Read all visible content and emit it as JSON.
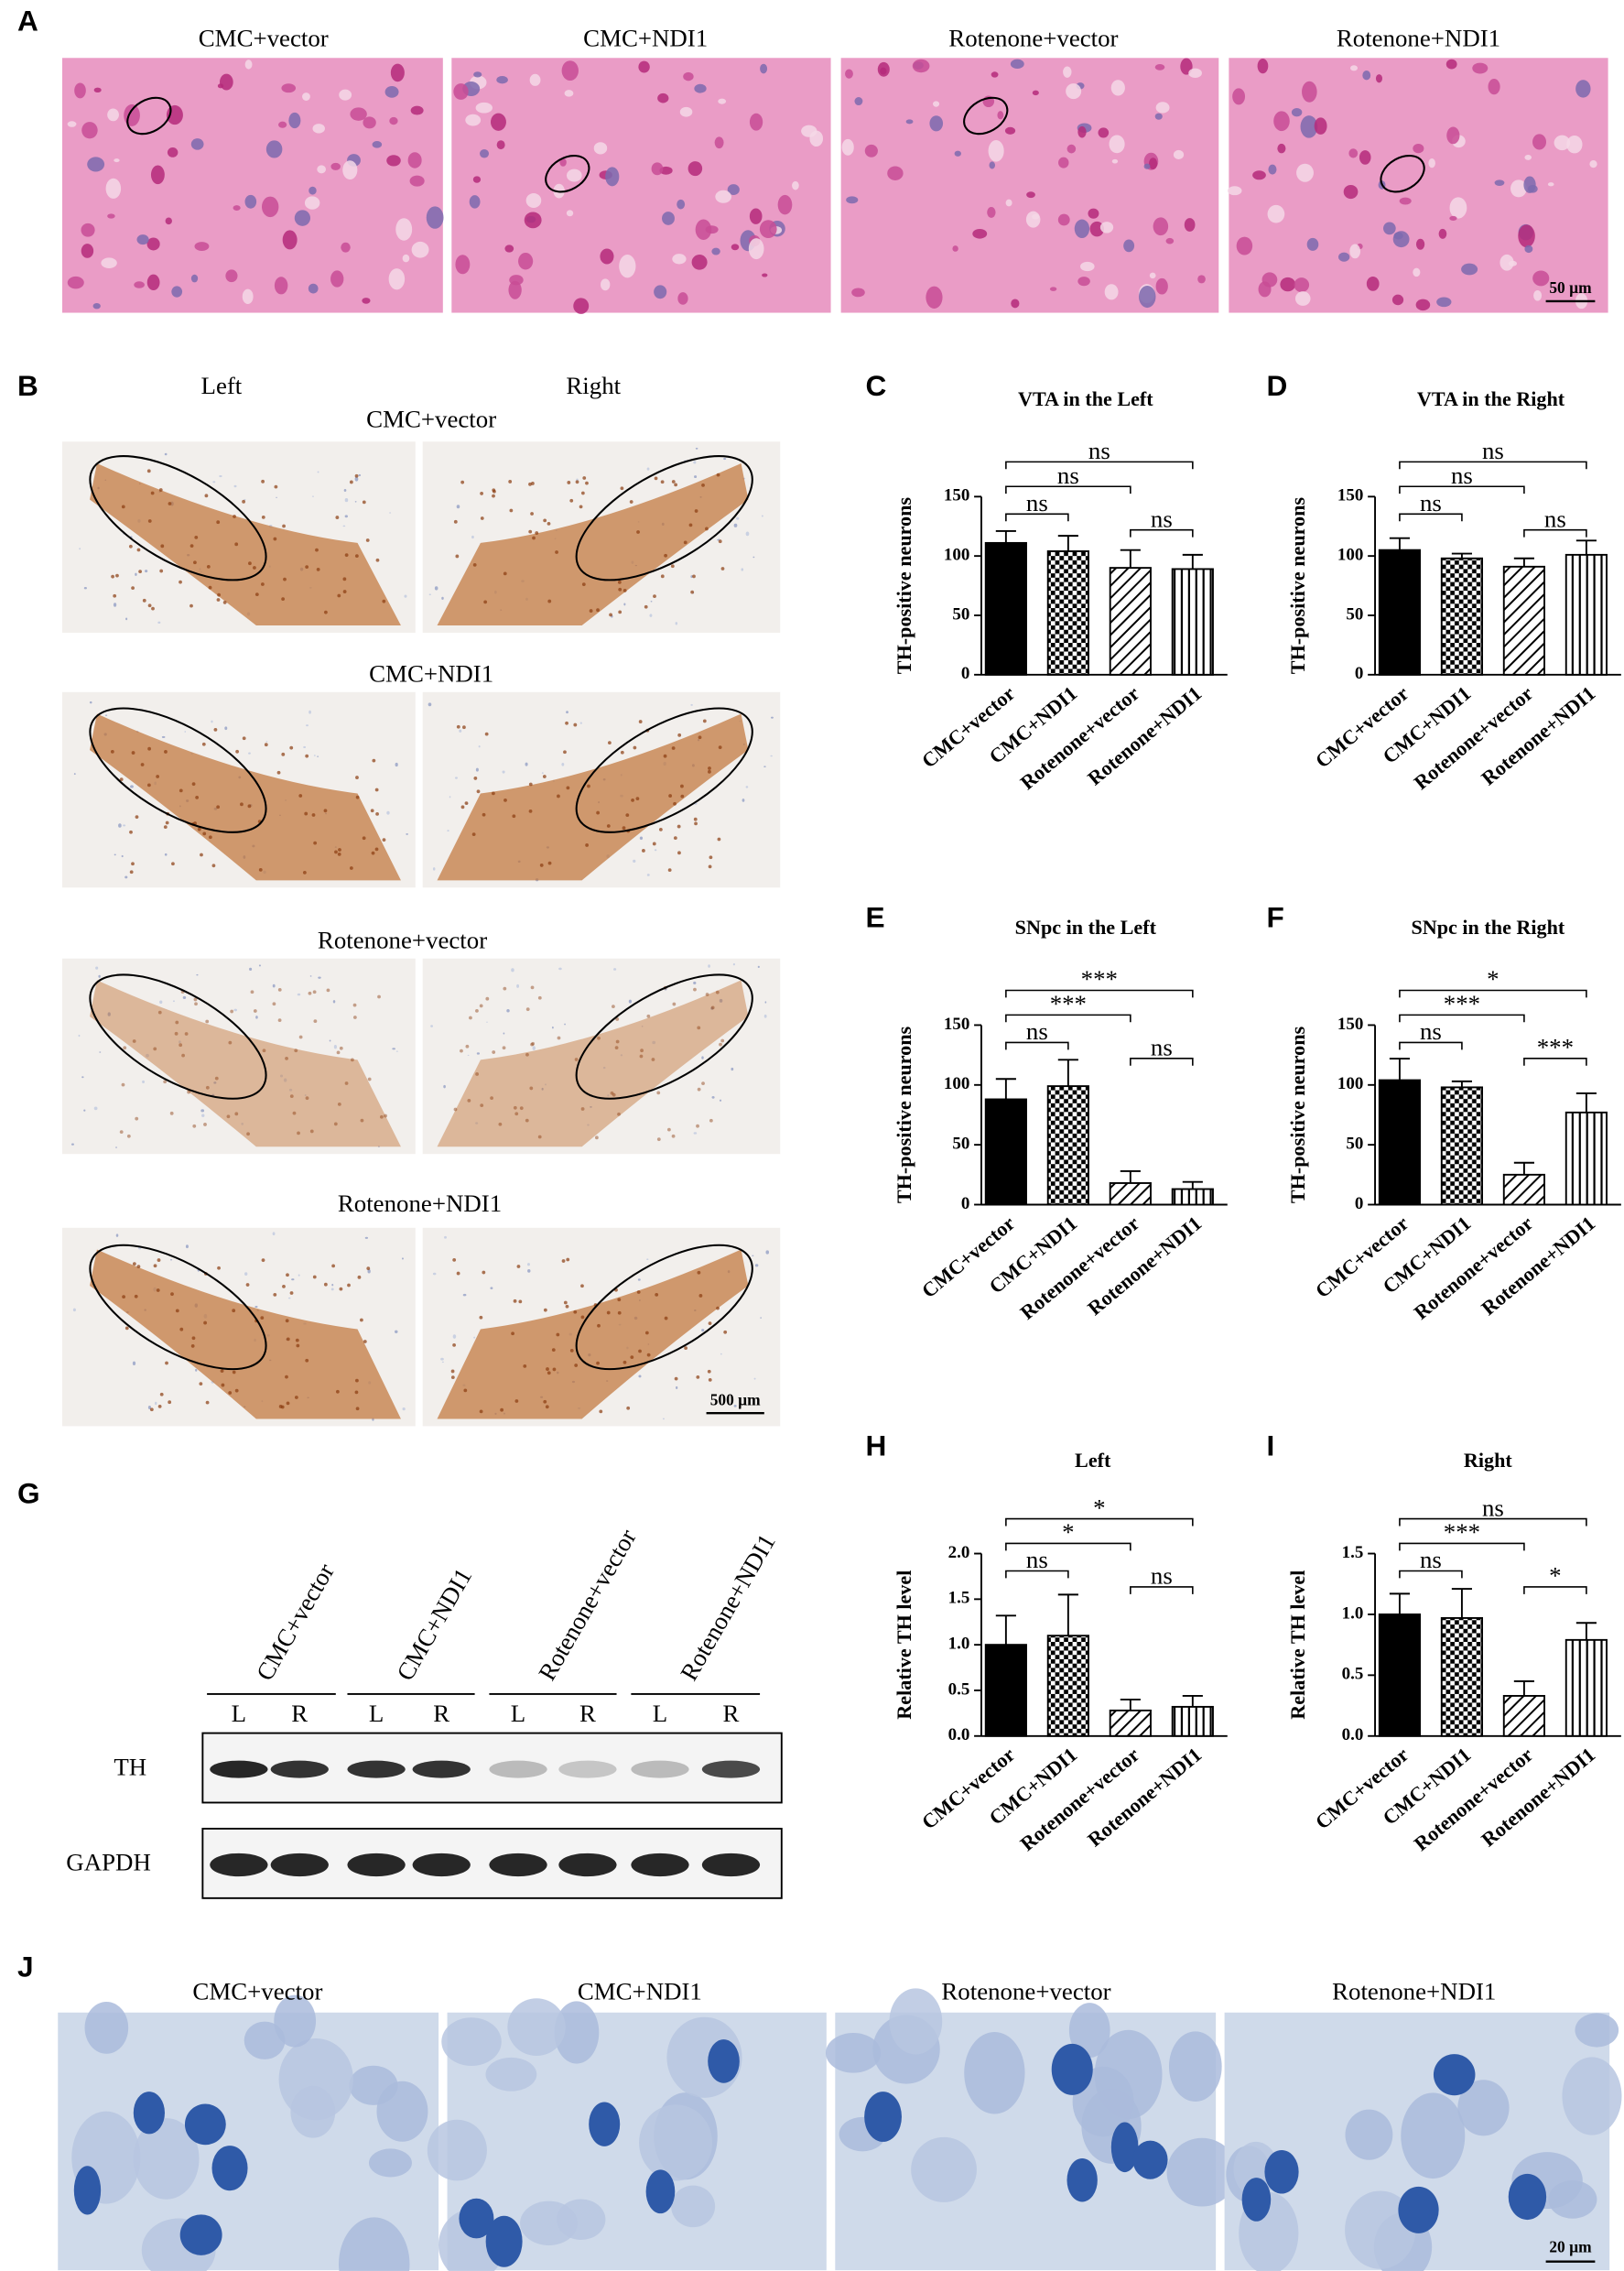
{
  "panel_a": {
    "letter": "A",
    "labels": [
      "CMC+vector",
      "CMC+NDI1",
      "Rotenone+vector",
      "Rotenone+NDI1"
    ],
    "scale_bar": "50 µm"
  },
  "panel_b": {
    "letter": "B",
    "sides": [
      "Left",
      "Right"
    ],
    "groups": [
      "CMC+vector",
      "CMC+NDI1",
      "Rotenone+vector",
      "Rotenone+NDI1"
    ],
    "scale_bar": "500 µm"
  },
  "panel_g": {
    "letter": "G",
    "lanes": [
      "CMC+vector",
      "CMC+NDI1",
      "Rotenone+vector",
      "Rotenone+NDI1"
    ],
    "sides": [
      "L",
      "R"
    ],
    "rows": [
      "TH",
      "GAPDH"
    ]
  },
  "panel_j": {
    "letter": "J",
    "labels": [
      "CMC+vector",
      "CMC+NDI1",
      "Rotenone+vector",
      "Rotenone+NDI1"
    ],
    "scale_bar": "20 µm"
  },
  "chart_data": [
    {
      "panel": "C",
      "type": "bar",
      "title": "VTA in the Left",
      "y_label": "TH-positive neurons",
      "categories": [
        "CMC+vector",
        "CMC+NDI1",
        "Rotenone+vector",
        "Rotenone+NDI1"
      ],
      "values": [
        111,
        104,
        90,
        89
      ],
      "errors": [
        10,
        13,
        15,
        12
      ],
      "fills": [
        "solid",
        "checker",
        "hatch",
        "vertical"
      ],
      "ylim": [
        0,
        150
      ],
      "yticks": [
        0,
        50,
        100,
        150
      ],
      "comparisons": [
        {
          "from": "CMC+vector",
          "to": "CMC+NDI1",
          "label": "ns"
        },
        {
          "from": "CMC+vector",
          "to": "Rotenone+vector",
          "label": "ns"
        },
        {
          "from": "CMC+vector",
          "to": "Rotenone+NDI1",
          "label": "ns"
        },
        {
          "from": "Rotenone+vector",
          "to": "Rotenone+NDI1",
          "label": "ns"
        }
      ]
    },
    {
      "panel": "D",
      "type": "bar",
      "title": "VTA in the Right",
      "y_label": "TH-positive neurons",
      "categories": [
        "CMC+vector",
        "CMC+NDI1",
        "Rotenone+vector",
        "Rotenone+NDI1"
      ],
      "values": [
        105,
        98,
        91,
        101
      ],
      "errors": [
        10,
        4,
        7,
        12
      ],
      "fills": [
        "solid",
        "checker",
        "hatch",
        "vertical"
      ],
      "ylim": [
        0,
        150
      ],
      "yticks": [
        0,
        50,
        100,
        150
      ],
      "comparisons": [
        {
          "from": "CMC+vector",
          "to": "CMC+NDI1",
          "label": "ns"
        },
        {
          "from": "CMC+vector",
          "to": "Rotenone+vector",
          "label": "ns"
        },
        {
          "from": "CMC+vector",
          "to": "Rotenone+NDI1",
          "label": "ns"
        },
        {
          "from": "Rotenone+vector",
          "to": "Rotenone+NDI1",
          "label": "ns"
        }
      ]
    },
    {
      "panel": "E",
      "type": "bar",
      "title": "SNpc in the Left",
      "y_label": "TH-positive neurons",
      "categories": [
        "CMC+vector",
        "CMC+NDI1",
        "Rotenone+vector",
        "Rotenone+NDI1"
      ],
      "values": [
        88,
        99,
        18,
        13
      ],
      "errors": [
        17,
        22,
        10,
        6
      ],
      "fills": [
        "solid",
        "checker",
        "hatch",
        "vertical"
      ],
      "ylim": [
        0,
        150
      ],
      "yticks": [
        0,
        50,
        100,
        150
      ],
      "comparisons": [
        {
          "from": "CMC+vector",
          "to": "CMC+NDI1",
          "label": "ns"
        },
        {
          "from": "CMC+vector",
          "to": "Rotenone+vector",
          "label": "***"
        },
        {
          "from": "CMC+vector",
          "to": "Rotenone+NDI1",
          "label": "***"
        },
        {
          "from": "Rotenone+vector",
          "to": "Rotenone+NDI1",
          "label": "ns"
        }
      ]
    },
    {
      "panel": "F",
      "type": "bar",
      "title": "SNpc in the Right",
      "y_label": "TH-positive neurons",
      "categories": [
        "CMC+vector",
        "CMC+NDI1",
        "Rotenone+vector",
        "Rotenone+NDI1"
      ],
      "values": [
        104,
        98,
        25,
        77
      ],
      "errors": [
        18,
        5,
        10,
        16
      ],
      "fills": [
        "solid",
        "checker",
        "hatch",
        "vertical"
      ],
      "ylim": [
        0,
        150
      ],
      "yticks": [
        0,
        50,
        100,
        150
      ],
      "comparisons": [
        {
          "from": "CMC+vector",
          "to": "CMC+NDI1",
          "label": "ns"
        },
        {
          "from": "CMC+vector",
          "to": "Rotenone+vector",
          "label": "***"
        },
        {
          "from": "CMC+vector",
          "to": "Rotenone+NDI1",
          "label": "*"
        },
        {
          "from": "Rotenone+vector",
          "to": "Rotenone+NDI1",
          "label": "***"
        }
      ]
    },
    {
      "panel": "H",
      "type": "bar",
      "title": "Left",
      "y_label": "Relative TH level",
      "categories": [
        "CMC+vector",
        "CMC+NDI1",
        "Rotenone+vector",
        "Rotenone+NDI1"
      ],
      "values": [
        1.0,
        1.1,
        0.28,
        0.32
      ],
      "errors": [
        0.32,
        0.45,
        0.12,
        0.12
      ],
      "fills": [
        "solid",
        "checker",
        "hatch",
        "vertical"
      ],
      "ylim": [
        0,
        2
      ],
      "yticks": [
        {
          "value": 0,
          "label": "0.0"
        },
        {
          "value": 0.5,
          "label": "0.5"
        },
        {
          "value": 1,
          "label": "1.0"
        },
        {
          "value": 1.5,
          "label": "1.5"
        },
        {
          "value": 2,
          "label": "2.0"
        }
      ],
      "comparisons": [
        {
          "from": "CMC+vector",
          "to": "CMC+NDI1",
          "label": "ns"
        },
        {
          "from": "CMC+vector",
          "to": "Rotenone+vector",
          "label": "*"
        },
        {
          "from": "CMC+vector",
          "to": "Rotenone+NDI1",
          "label": "*"
        },
        {
          "from": "Rotenone+vector",
          "to": "Rotenone+NDI1",
          "label": "ns"
        }
      ]
    },
    {
      "panel": "I",
      "type": "bar",
      "title": "Right",
      "y_label": "Relative TH level",
      "categories": [
        "CMC+vector",
        "CMC+NDI1",
        "Rotenone+vector",
        "Rotenone+NDI1"
      ],
      "values": [
        1.0,
        0.97,
        0.33,
        0.79
      ],
      "errors": [
        0.17,
        0.24,
        0.12,
        0.14
      ],
      "fills": [
        "solid",
        "checker",
        "hatch",
        "vertical"
      ],
      "ylim": [
        0,
        1.5
      ],
      "yticks": [
        {
          "value": 0,
          "label": "0.0"
        },
        {
          "value": 0.5,
          "label": "0.5"
        },
        {
          "value": 1,
          "label": "1.0"
        },
        {
          "value": 1.5,
          "label": "1.5"
        }
      ],
      "comparisons": [
        {
          "from": "CMC+vector",
          "to": "CMC+NDI1",
          "label": "ns"
        },
        {
          "from": "CMC+vector",
          "to": "Rotenone+vector",
          "label": "***"
        },
        {
          "from": "CMC+vector",
          "to": "Rotenone+NDI1",
          "label": "ns"
        },
        {
          "from": "Rotenone+vector",
          "to": "Rotenone+NDI1",
          "label": "*"
        }
      ]
    }
  ]
}
